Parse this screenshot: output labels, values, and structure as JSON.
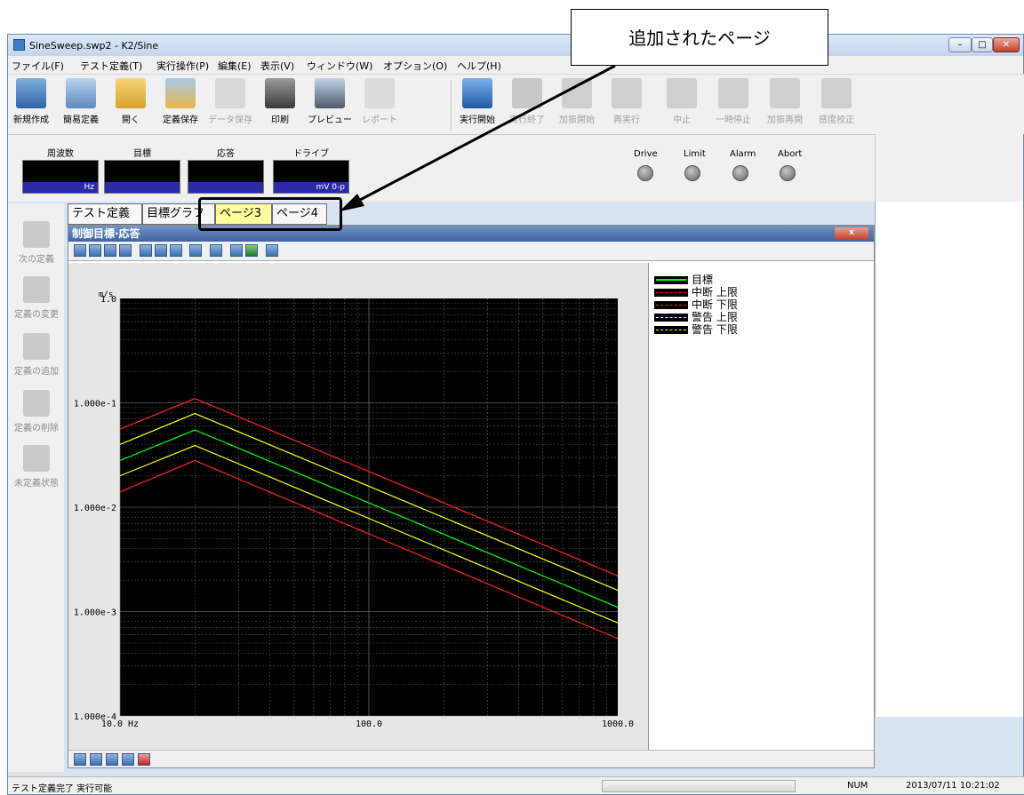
{
  "window": {
    "title": "SineSweep.swp2 - K2/Sine"
  },
  "menu": [
    "ファイル(F)",
    "テスト定義(T)",
    "実行操作(P)",
    "編集(E)",
    "表示(V)",
    "ウィンドウ(W)",
    "オプション(O)",
    "ヘルプ(H)"
  ],
  "toolbar": {
    "buttons": [
      "新規作成",
      "簡易定義",
      "開く",
      "定義保存",
      "データ保存",
      "印刷",
      "プレビュー",
      "レポート",
      "実行開始",
      "実行終了",
      "加振開始",
      "再実行",
      "中止",
      "一時停止",
      "加振再開",
      "感度校正"
    ]
  },
  "monitor": {
    "labels": [
      "周波数",
      "目標",
      "応答",
      "ドライブ"
    ],
    "units": [
      "Hz",
      "",
      "",
      "mV 0-p"
    ],
    "lamps": [
      "Drive",
      "Limit",
      "Alarm",
      "Abort"
    ]
  },
  "leftbar": [
    "次の定義",
    "定義の変更",
    "定義の追加",
    "定義の削除",
    "未定義状態"
  ],
  "tabs": [
    "テスト定義",
    "目標グラフ",
    "ページ3",
    "ページ4"
  ],
  "graph": {
    "title": "制御目標·応答",
    "close": "x"
  },
  "legend": [
    {
      "label": "目標",
      "color": "#00ff00"
    },
    {
      "label": "中断 上限",
      "color": "#ff2020"
    },
    {
      "label": "中断 下限",
      "color": "#ff2020"
    },
    {
      "label": "警告 上限",
      "color": "#ffff00"
    },
    {
      "label": "警告 下限",
      "color": "#ffff00"
    }
  ],
  "chart_data": {
    "type": "line",
    "ylabel": "m/s",
    "x_scale": "log",
    "y_scale": "log",
    "xlim": [
      10,
      1000
    ],
    "ylim": [
      0.0001,
      1.0
    ],
    "x_ticks": [
      "10.0 Hz",
      "100.0",
      "1000.0"
    ],
    "y_ticks": [
      "1.0",
      "1.000e-1",
      "1.000e-2",
      "1.000e-3",
      "1.000e-4"
    ],
    "series": [
      {
        "name": "目標",
        "color": "#00ff00",
        "x": [
          10,
          20,
          1000
        ],
        "y": [
          0.028,
          0.055,
          0.0011
        ]
      },
      {
        "name": "中断 上限",
        "color": "#ff2020",
        "x": [
          10,
          20,
          1000
        ],
        "y": [
          0.056,
          0.11,
          0.0022
        ]
      },
      {
        "name": "中断 下限",
        "color": "#ff2020",
        "x": [
          10,
          20,
          1000
        ],
        "y": [
          0.014,
          0.028,
          0.00055
        ]
      },
      {
        "name": "警告 上限",
        "color": "#ffff00",
        "x": [
          10,
          20,
          1000
        ],
        "y": [
          0.04,
          0.079,
          0.0016
        ]
      },
      {
        "name": "警告 下限",
        "color": "#ffff00",
        "x": [
          10,
          20,
          1000
        ],
        "y": [
          0.02,
          0.039,
          0.00078
        ]
      }
    ]
  },
  "statusbar": {
    "message": "テスト定義完了 実行可能",
    "num": "NUM",
    "datetime": "2013/07/11 10:21:02"
  },
  "callout": {
    "text": "追加されたページ"
  }
}
